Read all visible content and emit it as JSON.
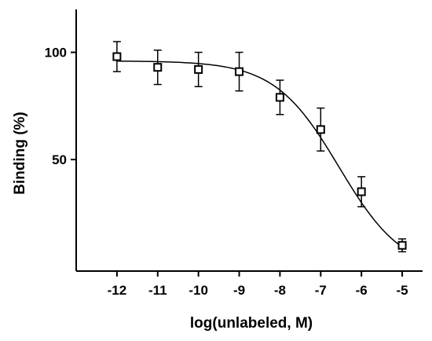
{
  "chart_data": {
    "type": "scatter",
    "title": "",
    "xlabel": "log(unlabeled, M)",
    "ylabel": "Binding (%)",
    "xlim": [
      -13.0,
      -4.5
    ],
    "ylim": [
      -2,
      120
    ],
    "xticks": [
      -12,
      -11,
      -10,
      -9,
      -8,
      -7,
      -6,
      -5
    ],
    "xtick_labels": [
      "-12",
      "-11",
      "-10",
      "-9",
      "-8",
      "-7",
      "-6",
      "-5"
    ],
    "yticks": [
      50,
      100
    ],
    "ytick_labels": [
      "50",
      "100"
    ],
    "grid": false,
    "legend": "none",
    "series": [
      {
        "marker": "open-square",
        "x": [
          -12,
          -11,
          -10,
          -9,
          -8,
          -7,
          -6,
          -5
        ],
        "y": [
          98,
          93,
          92,
          91,
          79,
          64,
          35,
          10
        ],
        "error": [
          7,
          8,
          8,
          9,
          8,
          10,
          7,
          3
        ]
      }
    ],
    "fit_curve": {
      "model": "sigmoidal dose-response",
      "top": 96,
      "bottom": -3,
      "log_ic50": -6.55,
      "hill_slope": -0.55,
      "x_range": [
        -12,
        -5
      ]
    },
    "colors": {
      "axis": "#000000",
      "marker": "#000000",
      "curve": "#000000"
    }
  }
}
